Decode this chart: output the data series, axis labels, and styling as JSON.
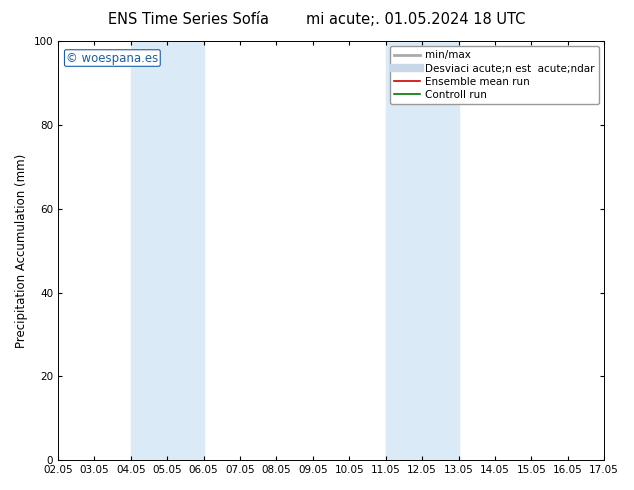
{
  "title": "ENS Time Series Sofía",
  "subtitle": "mi acute;. 01.05.2024 18 UTC",
  "ylabel": "Precipitation Accumulation (mm)",
  "ylim": [
    0,
    100
  ],
  "yticks": [
    0,
    20,
    40,
    60,
    80,
    100
  ],
  "xlabels": [
    "02.05",
    "03.05",
    "04.05",
    "05.05",
    "06.05",
    "07.05",
    "08.05",
    "09.05",
    "10.05",
    "11.05",
    "12.05",
    "13.05",
    "14.05",
    "15.05",
    "16.05",
    "17.05"
  ],
  "shaded_regions": [
    {
      "xmin": 2,
      "xmax": 4,
      "color": "#daeaf6"
    },
    {
      "xmin": 9,
      "xmax": 11,
      "color": "#daeaf6"
    }
  ],
  "background_color": "#ffffff",
  "watermark": "© woespana.es",
  "legend_items": [
    {
      "label": "min/max",
      "type": "line",
      "color": "#aaaaaa",
      "lw": 2.0
    },
    {
      "label": "Desviaci acute;n est  acute;ndar",
      "type": "line",
      "color": "#c8d8e8",
      "lw": 6.0
    },
    {
      "label": "Ensemble mean run",
      "type": "line",
      "color": "#cc0000",
      "lw": 1.2
    },
    {
      "label": "Controll run",
      "type": "line",
      "color": "#007700",
      "lw": 1.2
    }
  ],
  "grid_color": "#dddddd",
  "title_fontsize": 10.5,
  "axis_fontsize": 8.5,
  "tick_fontsize": 7.5,
  "watermark_fontsize": 8.5,
  "legend_fontsize": 7.5
}
